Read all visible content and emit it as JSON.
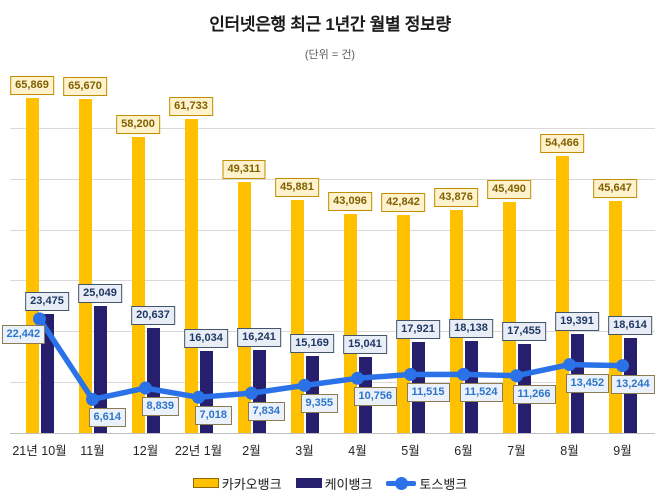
{
  "header": {
    "title": "인터넷은행 최근 1년간 월별 정보량",
    "subtitle": "(단위 = 건)"
  },
  "chart_data": {
    "type": "combo",
    "title": "인터넷은행 최근 1년간 월별 정보량",
    "subtitle": "(단위 = 건)",
    "xlabel": "",
    "ylabel": "",
    "ylim": [
      0,
      70000
    ],
    "grid": true,
    "grid_interval": 10000,
    "legend_position": "bottom",
    "categories": [
      "21년 10월",
      "11월",
      "12월",
      "22년 1월",
      "2월",
      "3월",
      "4월",
      "5월",
      "6월",
      "7월",
      "8월",
      "9월"
    ],
    "series": [
      {
        "id": "kakao-bank",
        "name": "카카오뱅크",
        "type": "bar",
        "color": "#FFC000",
        "label_style": {
          "bg": "#FFF2CC",
          "border": "#BF8F00",
          "text": "#7F6000"
        },
        "values": [
          65869,
          65670,
          58200,
          61733,
          49311,
          45881,
          43096,
          42842,
          43876,
          45490,
          54466,
          45647
        ]
      },
      {
        "id": "k-bank",
        "name": "케이뱅크",
        "type": "bar",
        "color": "#251F6E",
        "label_style": {
          "bg": "#E9EEF6",
          "border": "#44546A",
          "text": "#1F3864"
        },
        "values": [
          23475,
          25049,
          20637,
          16034,
          16241,
          15169,
          15041,
          17921,
          18138,
          17455,
          19391,
          18614
        ]
      },
      {
        "id": "toss-bank",
        "name": "토스뱅크",
        "type": "line",
        "color": "#2B72E8",
        "label_style": {
          "bg": "#EAF1FB",
          "border": "#8C7B52",
          "text": "#2E75C8"
        },
        "values": [
          22442,
          6614,
          8839,
          7018,
          7834,
          9355,
          10756,
          11515,
          11524,
          11266,
          13452,
          13244
        ]
      }
    ]
  }
}
